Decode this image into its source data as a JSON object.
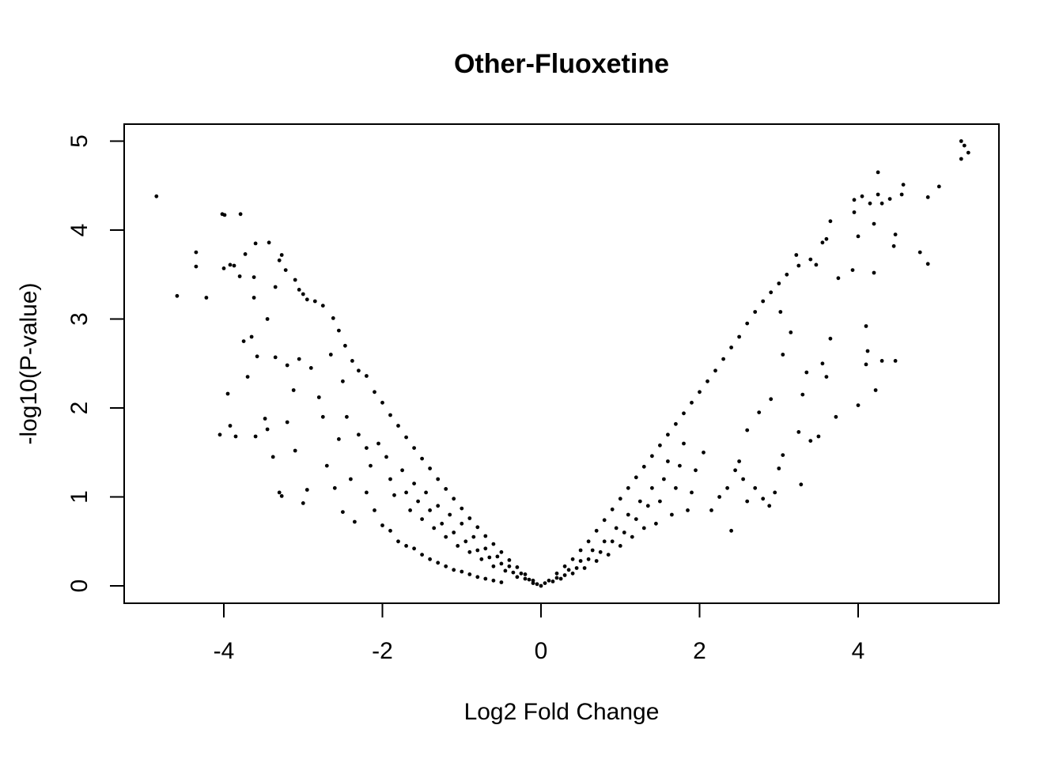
{
  "chart_data": {
    "type": "scatter",
    "title": "Other-Fluoxetine",
    "xlabel": "Log2 Fold Change",
    "ylabel": "-log10(P-value)",
    "xlim": [
      -5.25,
      5.8
    ],
    "ylim": [
      -0.2,
      5.2
    ],
    "xticks": [
      -4,
      -2,
      0,
      2,
      4
    ],
    "xtick_labels": [
      "-4",
      "-2",
      "0",
      "2",
      "4"
    ],
    "yticks": [
      0,
      1,
      2,
      3,
      4,
      5
    ],
    "ytick_labels": [
      "0",
      "1",
      "2",
      "3",
      "4",
      "5"
    ],
    "grid": false,
    "legend": "none",
    "point_color": "#000000",
    "series": [
      {
        "points": [
          [
            -4.85,
            4.38
          ],
          [
            -4.59,
            3.26
          ],
          [
            -4.35,
            3.75
          ],
          [
            -4.35,
            3.59
          ],
          [
            -4.22,
            3.24
          ],
          [
            -4.02,
            4.18
          ],
          [
            -3.99,
            4.17
          ],
          [
            -3.79,
            4.18
          ],
          [
            -4.0,
            3.57
          ],
          [
            -3.92,
            3.61
          ],
          [
            -3.87,
            3.6
          ],
          [
            -3.73,
            3.73
          ],
          [
            -3.6,
            3.85
          ],
          [
            -3.43,
            3.86
          ],
          [
            -3.62,
            3.47
          ],
          [
            -3.8,
            3.48
          ],
          [
            -3.62,
            3.24
          ],
          [
            -3.75,
            2.75
          ],
          [
            -3.65,
            2.8
          ],
          [
            -3.7,
            2.35
          ],
          [
            -3.58,
            2.58
          ],
          [
            -3.45,
            3.0
          ],
          [
            -3.35,
            3.36
          ],
          [
            -3.3,
            3.66
          ],
          [
            -3.27,
            3.72
          ],
          [
            -3.22,
            3.55
          ],
          [
            -3.1,
            3.44
          ],
          [
            -3.05,
            3.33
          ],
          [
            -3.0,
            3.28
          ],
          [
            -2.95,
            3.22
          ],
          [
            -2.85,
            3.2
          ],
          [
            -2.75,
            3.15
          ],
          [
            -2.62,
            3.01
          ],
          [
            -2.55,
            2.87
          ],
          [
            -2.47,
            2.7
          ],
          [
            -2.38,
            2.53
          ],
          [
            -2.3,
            2.42
          ],
          [
            -2.2,
            2.36
          ],
          [
            -2.1,
            2.18
          ],
          [
            -2.0,
            2.06
          ],
          [
            -1.9,
            1.92
          ],
          [
            -1.8,
            1.8
          ],
          [
            -1.7,
            1.67
          ],
          [
            -1.6,
            1.55
          ],
          [
            -1.5,
            1.43
          ],
          [
            -1.4,
            1.32
          ],
          [
            -1.3,
            1.2
          ],
          [
            -1.2,
            1.09
          ],
          [
            -1.1,
            0.98
          ],
          [
            -1.0,
            0.87
          ],
          [
            -0.9,
            0.76
          ],
          [
            -0.8,
            0.66
          ],
          [
            -0.7,
            0.56
          ],
          [
            -0.6,
            0.47
          ],
          [
            -0.5,
            0.38
          ],
          [
            -0.4,
            0.29
          ],
          [
            -0.3,
            0.21
          ],
          [
            -0.2,
            0.13
          ],
          [
            -0.1,
            0.06
          ],
          [
            0.0,
            0.0
          ],
          [
            -3.95,
            2.16
          ],
          [
            -3.92,
            1.8
          ],
          [
            -4.05,
            1.7
          ],
          [
            -3.85,
            1.68
          ],
          [
            -3.6,
            1.68
          ],
          [
            -3.48,
            1.88
          ],
          [
            -3.45,
            1.76
          ],
          [
            -3.38,
            1.45
          ],
          [
            -3.3,
            1.05
          ],
          [
            -3.27,
            1.01
          ],
          [
            -3.0,
            0.93
          ],
          [
            -2.95,
            1.08
          ],
          [
            -3.1,
            1.52
          ],
          [
            -3.2,
            1.84
          ],
          [
            -3.35,
            2.57
          ],
          [
            -3.2,
            2.48
          ],
          [
            -3.12,
            2.2
          ],
          [
            -3.05,
            2.55
          ],
          [
            -2.9,
            2.45
          ],
          [
            -2.8,
            2.12
          ],
          [
            -2.75,
            1.9
          ],
          [
            -2.7,
            1.35
          ],
          [
            -2.6,
            1.1
          ],
          [
            -2.5,
            0.83
          ],
          [
            -2.35,
            0.72
          ],
          [
            -2.55,
            1.65
          ],
          [
            -2.4,
            1.2
          ],
          [
            -2.2,
            1.05
          ],
          [
            -2.1,
            0.85
          ],
          [
            -2.0,
            0.68
          ],
          [
            -1.9,
            0.62
          ],
          [
            -1.8,
            0.5
          ],
          [
            -1.7,
            0.45
          ],
          [
            -1.6,
            0.42
          ],
          [
            -1.5,
            0.35
          ],
          [
            -1.4,
            0.3
          ],
          [
            -1.3,
            0.26
          ],
          [
            -1.2,
            0.22
          ],
          [
            -1.1,
            0.18
          ],
          [
            -1.0,
            0.16
          ],
          [
            -0.9,
            0.13
          ],
          [
            -0.8,
            0.1
          ],
          [
            -0.7,
            0.08
          ],
          [
            -0.6,
            0.06
          ],
          [
            -0.5,
            0.04
          ],
          [
            -2.65,
            2.6
          ],
          [
            -2.5,
            2.3
          ],
          [
            -2.45,
            1.9
          ],
          [
            -2.3,
            1.7
          ],
          [
            -2.2,
            1.55
          ],
          [
            -2.15,
            1.35
          ],
          [
            -2.05,
            1.6
          ],
          [
            -1.95,
            1.45
          ],
          [
            -1.9,
            1.2
          ],
          [
            -1.85,
            1.02
          ],
          [
            -1.75,
            1.3
          ],
          [
            -1.7,
            1.05
          ],
          [
            -1.65,
            0.85
          ],
          [
            -1.6,
            1.15
          ],
          [
            -1.55,
            0.95
          ],
          [
            -1.5,
            0.75
          ],
          [
            -1.45,
            1.05
          ],
          [
            -1.4,
            0.85
          ],
          [
            -1.35,
            0.65
          ],
          [
            -1.3,
            0.9
          ],
          [
            -1.25,
            0.7
          ],
          [
            -1.2,
            0.55
          ],
          [
            -1.15,
            0.8
          ],
          [
            -1.1,
            0.6
          ],
          [
            -1.05,
            0.45
          ],
          [
            -1.0,
            0.7
          ],
          [
            -0.95,
            0.5
          ],
          [
            -0.9,
            0.38
          ],
          [
            -0.85,
            0.55
          ],
          [
            -0.8,
            0.4
          ],
          [
            -0.75,
            0.3
          ],
          [
            -0.7,
            0.42
          ],
          [
            -0.65,
            0.32
          ],
          [
            -0.6,
            0.22
          ],
          [
            -0.55,
            0.33
          ],
          [
            -0.5,
            0.25
          ],
          [
            -0.45,
            0.17
          ],
          [
            -0.4,
            0.22
          ],
          [
            -0.35,
            0.15
          ],
          [
            -0.3,
            0.1
          ],
          [
            -0.25,
            0.14
          ],
          [
            -0.2,
            0.08
          ],
          [
            -0.15,
            0.07
          ],
          [
            -0.1,
            0.03
          ],
          [
            -0.05,
            0.02
          ],
          [
            5.3,
            5.0
          ],
          [
            5.34,
            4.95
          ],
          [
            5.39,
            4.87
          ],
          [
            5.3,
            4.8
          ],
          [
            5.02,
            4.49
          ],
          [
            4.88,
            4.37
          ],
          [
            4.57,
            4.51
          ],
          [
            4.55,
            4.4
          ],
          [
            4.4,
            4.35
          ],
          [
            4.3,
            4.3
          ],
          [
            4.25,
            4.65
          ],
          [
            4.25,
            4.4
          ],
          [
            4.15,
            4.3
          ],
          [
            4.05,
            4.38
          ],
          [
            3.95,
            4.34
          ],
          [
            3.95,
            4.2
          ],
          [
            4.0,
            3.93
          ],
          [
            4.2,
            4.07
          ],
          [
            4.47,
            3.95
          ],
          [
            4.45,
            3.82
          ],
          [
            4.78,
            3.75
          ],
          [
            4.88,
            3.62
          ],
          [
            4.2,
            3.52
          ],
          [
            3.93,
            3.55
          ],
          [
            3.75,
            3.46
          ],
          [
            3.65,
            4.1
          ],
          [
            3.6,
            3.9
          ],
          [
            3.55,
            3.86
          ],
          [
            3.47,
            3.61
          ],
          [
            3.4,
            3.67
          ],
          [
            3.25,
            3.6
          ],
          [
            3.22,
            3.72
          ],
          [
            3.1,
            3.5
          ],
          [
            3.0,
            3.4
          ],
          [
            2.9,
            3.3
          ],
          [
            2.8,
            3.2
          ],
          [
            2.7,
            3.08
          ],
          [
            2.6,
            2.95
          ],
          [
            2.5,
            2.8
          ],
          [
            2.4,
            2.68
          ],
          [
            2.3,
            2.55
          ],
          [
            2.2,
            2.42
          ],
          [
            2.1,
            2.3
          ],
          [
            2.0,
            2.18
          ],
          [
            1.9,
            2.06
          ],
          [
            1.8,
            1.94
          ],
          [
            1.7,
            1.82
          ],
          [
            1.6,
            1.7
          ],
          [
            1.5,
            1.58
          ],
          [
            1.4,
            1.46
          ],
          [
            1.3,
            1.34
          ],
          [
            1.2,
            1.22
          ],
          [
            1.1,
            1.1
          ],
          [
            1.0,
            0.98
          ],
          [
            0.9,
            0.86
          ],
          [
            0.8,
            0.74
          ],
          [
            0.7,
            0.62
          ],
          [
            0.6,
            0.5
          ],
          [
            0.5,
            0.4
          ],
          [
            0.4,
            0.3
          ],
          [
            0.3,
            0.22
          ],
          [
            0.2,
            0.14
          ],
          [
            0.1,
            0.06
          ],
          [
            0.05,
            0.03
          ],
          [
            4.1,
            2.92
          ],
          [
            4.12,
            2.64
          ],
          [
            4.1,
            2.49
          ],
          [
            4.3,
            2.53
          ],
          [
            4.47,
            2.53
          ],
          [
            4.22,
            2.2
          ],
          [
            4.0,
            2.03
          ],
          [
            3.72,
            1.9
          ],
          [
            3.65,
            2.78
          ],
          [
            3.55,
            2.5
          ],
          [
            3.6,
            2.35
          ],
          [
            3.35,
            2.4
          ],
          [
            3.3,
            2.15
          ],
          [
            3.25,
            1.73
          ],
          [
            3.5,
            1.68
          ],
          [
            3.4,
            1.63
          ],
          [
            3.28,
            1.14
          ],
          [
            3.05,
            1.47
          ],
          [
            3.0,
            1.32
          ],
          [
            2.95,
            1.05
          ],
          [
            2.88,
            0.9
          ],
          [
            2.8,
            0.98
          ],
          [
            2.7,
            1.1
          ],
          [
            2.6,
            0.95
          ],
          [
            2.4,
            0.62
          ],
          [
            2.5,
            1.4
          ],
          [
            2.6,
            1.75
          ],
          [
            2.75,
            1.95
          ],
          [
            2.9,
            2.1
          ],
          [
            3.05,
            2.6
          ],
          [
            3.15,
            2.85
          ],
          [
            3.02,
            3.08
          ],
          [
            2.55,
            1.2
          ],
          [
            2.45,
            1.3
          ],
          [
            2.35,
            1.1
          ],
          [
            2.25,
            1.0
          ],
          [
            2.15,
            0.85
          ],
          [
            2.05,
            1.5
          ],
          [
            1.95,
            1.3
          ],
          [
            1.9,
            1.05
          ],
          [
            1.85,
            0.85
          ],
          [
            1.8,
            1.6
          ],
          [
            1.75,
            1.35
          ],
          [
            1.7,
            1.1
          ],
          [
            1.65,
            0.8
          ],
          [
            1.6,
            1.4
          ],
          [
            1.55,
            1.2
          ],
          [
            1.5,
            0.95
          ],
          [
            1.45,
            0.7
          ],
          [
            1.4,
            1.1
          ],
          [
            1.35,
            0.9
          ],
          [
            1.3,
            0.65
          ],
          [
            1.25,
            0.95
          ],
          [
            1.2,
            0.75
          ],
          [
            1.15,
            0.55
          ],
          [
            1.1,
            0.8
          ],
          [
            1.05,
            0.6
          ],
          [
            1.0,
            0.45
          ],
          [
            0.95,
            0.65
          ],
          [
            0.9,
            0.5
          ],
          [
            0.85,
            0.35
          ],
          [
            0.8,
            0.5
          ],
          [
            0.75,
            0.38
          ],
          [
            0.7,
            0.28
          ],
          [
            0.65,
            0.4
          ],
          [
            0.6,
            0.3
          ],
          [
            0.55,
            0.2
          ],
          [
            0.5,
            0.28
          ],
          [
            0.45,
            0.2
          ],
          [
            0.4,
            0.14
          ],
          [
            0.35,
            0.18
          ],
          [
            0.3,
            0.12
          ],
          [
            0.25,
            0.08
          ],
          [
            0.2,
            0.09
          ],
          [
            0.15,
            0.05
          ]
        ]
      }
    ]
  }
}
